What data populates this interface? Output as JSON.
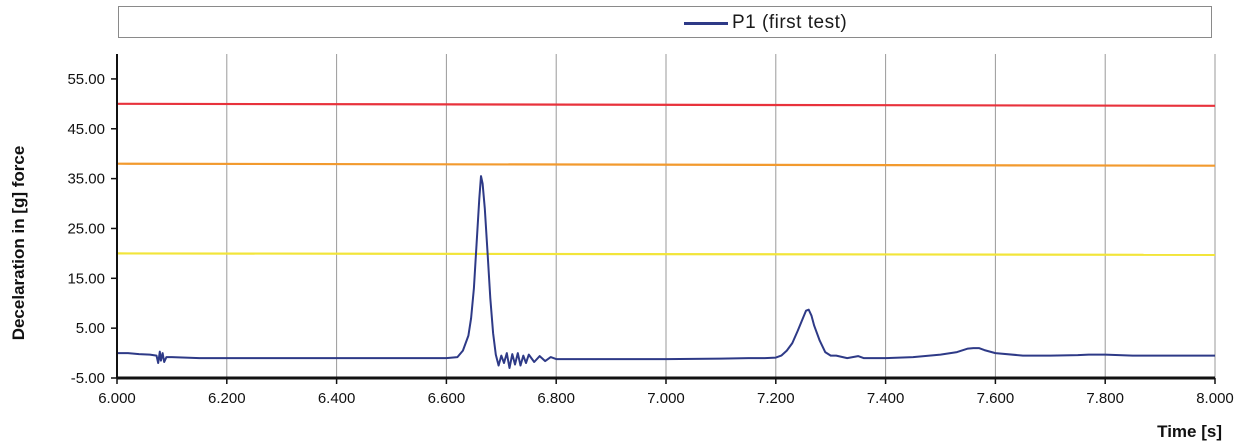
{
  "chart_data": {
    "type": "line",
    "title": "",
    "xlabel": "Time [s]",
    "ylabel": "Decelaration in [g]  force",
    "xlim": [
      6.0,
      8.0
    ],
    "ylim": [
      -5.0,
      60.0
    ],
    "x_ticks": [
      "6.000",
      "6.200",
      "6.400",
      "6.600",
      "6.800",
      "7.000",
      "7.200",
      "7.400",
      "7.600",
      "7.800",
      "8.000"
    ],
    "y_ticks": [
      "55.00",
      "45.00",
      "35.00",
      "25.00",
      "15.00",
      "5.00",
      "-5.00"
    ],
    "x_tick_values": [
      6.0,
      6.2,
      6.4,
      6.6,
      6.8,
      7.0,
      7.2,
      7.4,
      7.6,
      7.8,
      8.0
    ],
    "y_tick_values": [
      55,
      45,
      35,
      25,
      15,
      5,
      -5
    ],
    "grid": "vertical",
    "legend_position": "top",
    "series": [
      {
        "name": "P1 (first test)",
        "color": "#2e3a87",
        "x": [
          6.0,
          6.02,
          6.04,
          6.06,
          6.072,
          6.075,
          6.078,
          6.08,
          6.083,
          6.086,
          6.09,
          6.1,
          6.15,
          6.2,
          6.3,
          6.4,
          6.5,
          6.55,
          6.6,
          6.62,
          6.63,
          6.64,
          6.645,
          6.65,
          6.655,
          6.66,
          6.663,
          6.666,
          6.67,
          6.675,
          6.68,
          6.685,
          6.69,
          6.695,
          6.7,
          6.705,
          6.71,
          6.715,
          6.72,
          6.725,
          6.73,
          6.735,
          6.74,
          6.745,
          6.75,
          6.76,
          6.77,
          6.78,
          6.79,
          6.8,
          6.85,
          6.9,
          6.95,
          7.0,
          7.1,
          7.15,
          7.18,
          7.2,
          7.21,
          7.22,
          7.23,
          7.24,
          7.25,
          7.255,
          7.26,
          7.265,
          7.27,
          7.28,
          7.29,
          7.3,
          7.31,
          7.33,
          7.35,
          7.36,
          7.4,
          7.45,
          7.5,
          7.53,
          7.55,
          7.56,
          7.57,
          7.58,
          7.6,
          7.65,
          7.7,
          7.75,
          7.77,
          7.8,
          7.85,
          7.9,
          7.95,
          8.0
        ],
        "y": [
          0.0,
          0.0,
          -0.2,
          -0.3,
          -0.5,
          -2.0,
          0.3,
          -1.5,
          0.0,
          -1.8,
          -0.8,
          -0.8,
          -1.0,
          -1.0,
          -1.0,
          -1.0,
          -1.0,
          -1.0,
          -1.0,
          -0.8,
          0.5,
          3.5,
          7.0,
          13.0,
          22.0,
          31.0,
          35.5,
          34.0,
          29.0,
          20.0,
          11.0,
          4.0,
          -0.3,
          -2.5,
          -0.5,
          -2.0,
          0.0,
          -3.0,
          -0.2,
          -2.3,
          0.0,
          -2.5,
          -0.5,
          -2.0,
          -0.3,
          -1.8,
          -0.6,
          -1.6,
          -0.8,
          -1.2,
          -1.2,
          -1.2,
          -1.2,
          -1.2,
          -1.1,
          -1.0,
          -1.0,
          -0.9,
          -0.5,
          0.5,
          2.0,
          4.5,
          7.2,
          8.5,
          8.7,
          7.5,
          5.5,
          2.5,
          0.2,
          -0.5,
          -0.5,
          -1.0,
          -0.6,
          -1.0,
          -1.0,
          -0.8,
          -0.3,
          0.2,
          0.9,
          1.0,
          1.0,
          0.6,
          0.0,
          -0.5,
          -0.5,
          -0.4,
          -0.3,
          -0.3,
          -0.5,
          -0.5,
          -0.5,
          -0.5
        ]
      },
      {
        "name": "",
        "color": "#e8323c",
        "x": [
          6.0,
          8.0
        ],
        "y": [
          50.0,
          49.6
        ]
      },
      {
        "name": "",
        "color": "#f29a2e",
        "x": [
          6.0,
          8.0
        ],
        "y": [
          38.0,
          37.6
        ]
      },
      {
        "name": "",
        "color": "#f2e53a",
        "x": [
          6.0,
          8.0
        ],
        "y": [
          20.0,
          19.7
        ]
      }
    ]
  }
}
